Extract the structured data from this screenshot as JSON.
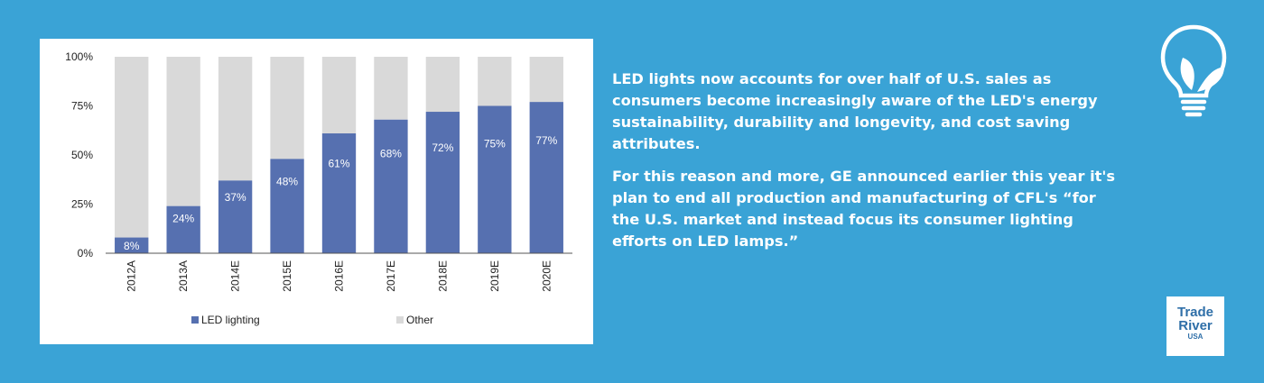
{
  "chart_data": {
    "type": "bar",
    "stacked": true,
    "categories": [
      "2012A",
      "2013A",
      "2014E",
      "2015E",
      "2016E",
      "2017E",
      "2018E",
      "2019E",
      "2020E"
    ],
    "series": [
      {
        "name": "LED lighting",
        "color": "#5670b0",
        "values": [
          8,
          24,
          37,
          48,
          61,
          68,
          72,
          75,
          77
        ]
      },
      {
        "name": "Other",
        "color": "#d9d9d9",
        "values": [
          92,
          76,
          63,
          52,
          39,
          32,
          28,
          25,
          23
        ]
      }
    ],
    "data_labels": [
      "8%",
      "24%",
      "37%",
      "48%",
      "61%",
      "68%",
      "72%",
      "75%",
      "77%"
    ],
    "y_ticks": [
      {
        "value": 0,
        "label": "0%"
      },
      {
        "value": 25,
        "label": "25%"
      },
      {
        "value": 50,
        "label": "50%"
      },
      {
        "value": 75,
        "label": "75%"
      },
      {
        "value": 100,
        "label": "100%"
      }
    ],
    "ylim": [
      0,
      100
    ],
    "legend": {
      "position": "bottom",
      "entries": [
        "LED lighting",
        "Other"
      ]
    }
  },
  "text": {
    "paragraph1": "LED lights now accounts for over half of U.S. sales as consumers become increasingly aware of the LED's energy sustainability, durability and longevity, and cost saving attributes.",
    "paragraph2": "For this reason and more, GE announced earlier this year it's plan to end all production and manufacturing of CFL's “for the U.S. market and instead focus its consumer lighting efforts on LED lamps.”"
  },
  "logo": {
    "line1": "Trade",
    "line2": "River",
    "line3": "USA"
  },
  "colors": {
    "background": "#3aa3d6",
    "led": "#5670b0",
    "other": "#d9d9d9"
  }
}
